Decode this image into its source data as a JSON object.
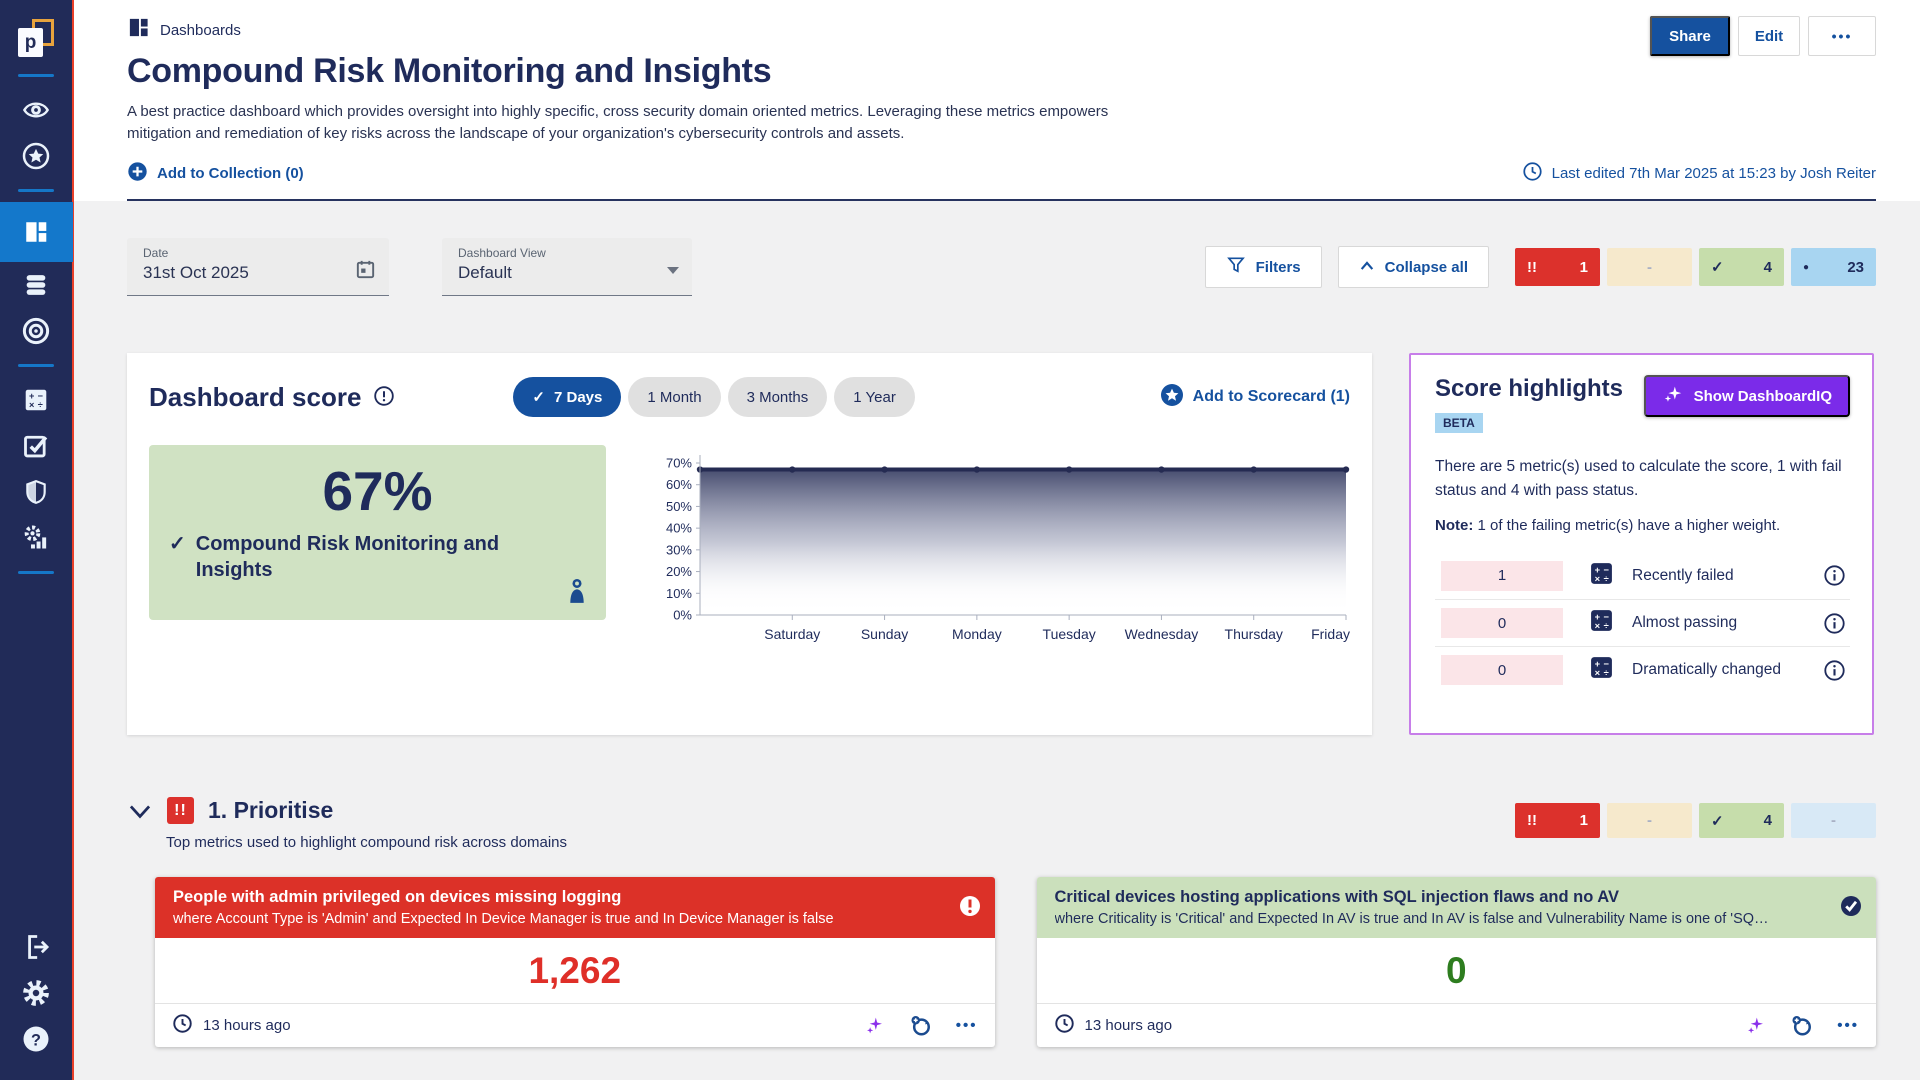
{
  "icons": {
    "check": "✓",
    "double_exclamation": "!!",
    "dot": "●",
    "more": "•••"
  },
  "sidebar": {
    "active_item": "dashboards"
  },
  "header": {
    "breadcrumb": "Dashboards",
    "title": "Compound Risk Monitoring and Insights",
    "description": "A best practice dashboard which provides oversight into highly specific, cross security domain oriented metrics. Leveraging these metrics empowers mitigation and remediation of key risks across the landscape of your organization's cybersecurity controls and assets.",
    "add_to_collection": "Add to Collection (0)",
    "share_label": "Share",
    "edit_label": "Edit",
    "last_edited": "Last edited 7th Mar 2025 at 15:23 by Josh Reiter"
  },
  "filter_bar": {
    "date_label": "Date",
    "date_value": "31st Oct 2025",
    "view_label": "Dashboard View",
    "view_value": "Default",
    "filters_label": "Filters",
    "collapse_label": "Collapse all",
    "chips": [
      {
        "kind": "fail",
        "icon": "!!",
        "count": "1"
      },
      {
        "kind": "warn",
        "icon": "",
        "count": "-"
      },
      {
        "kind": "pass",
        "icon": "✓",
        "count": "4"
      },
      {
        "kind": "info",
        "icon": "●",
        "count": "23"
      }
    ]
  },
  "score_section": {
    "title": "Dashboard score",
    "ranges": [
      {
        "label": "7 Days"
      },
      {
        "label": "1 Month"
      },
      {
        "label": "3 Months"
      },
      {
        "label": "1 Year"
      }
    ],
    "selected_range": "7 Days",
    "add_to_scorecard": "Add to Scorecard (1)",
    "score": "67%",
    "score_label": "Compound Risk Monitoring and Insights"
  },
  "chart_data": {
    "type": "area",
    "title": "Dashboard score over 7 days",
    "x": [
      "",
      "Saturday",
      "Sunday",
      "Monday",
      "Tuesday",
      "Wednesday",
      "Thursday",
      "Friday"
    ],
    "series": [
      {
        "name": "Dashboard score",
        "values": [
          67,
          67,
          67,
          67,
          67,
          67,
          67,
          67
        ]
      }
    ],
    "ylim": [
      0,
      70
    ],
    "yticks": [
      "0%",
      "10%",
      "20%",
      "30%",
      "40%",
      "50%",
      "60%",
      "70%"
    ],
    "grid": false,
    "legend": false,
    "line_color": "#252B52"
  },
  "score_highlights": {
    "title": "Score highlights",
    "beta": "BETA",
    "show_button": "Show DashboardIQ",
    "summary": "There are 5 metric(s) used to calculate the score, 1 with fail status and 4 with pass status.",
    "note_label": "Note:",
    "note_text": " 1 of the failing metric(s) have a higher weight.",
    "rows": [
      {
        "count": "1",
        "label": "Recently failed"
      },
      {
        "count": "0",
        "label": "Almost passing"
      },
      {
        "count": "0",
        "label": "Dramatically changed"
      }
    ]
  },
  "prioritise_section": {
    "title": "1. Prioritise",
    "subtitle": "Top metrics used to highlight compound risk across domains",
    "chips": [
      {
        "kind": "fail",
        "icon": "!!",
        "count": "1"
      },
      {
        "kind": "warn",
        "icon": "",
        "count": "-"
      },
      {
        "kind": "pass",
        "icon": "✓",
        "count": "4"
      },
      {
        "kind": "info-light",
        "icon": "",
        "count": "-"
      }
    ]
  },
  "metric_cards": [
    {
      "status": "fail",
      "title": "People with admin privileged on devices missing logging",
      "condition": "where Account Type is 'Admin' and Expected In Device Manager is true and In Device Manager is false",
      "value": "1,262",
      "updated": "13 hours ago"
    },
    {
      "status": "pass",
      "title": "Critical devices hosting applications with SQL injection flaws and no AV",
      "condition": "where Criticality is 'Critical' and Expected In AV is true and In AV is false and Vulnerability Name is one of 'SQ…",
      "value": "0",
      "updated": "13 hours ago"
    }
  ],
  "colors": {
    "sidebar": "#212B58",
    "accent_blue": "#15519F",
    "active_blue": "#1478CB",
    "fail_red": "#DC3128",
    "warn_cream": "#F6E9CC",
    "pass_green": "#C6DDAB",
    "info_blue": "#A8D5F1",
    "purple": "#7B2BE9",
    "purple_border": "#C77EE9",
    "pink": "#FBE5E8",
    "score_green": "#D0E2C3",
    "value_green": "#2E7D1F",
    "navy_text": "#1F2B5B"
  }
}
